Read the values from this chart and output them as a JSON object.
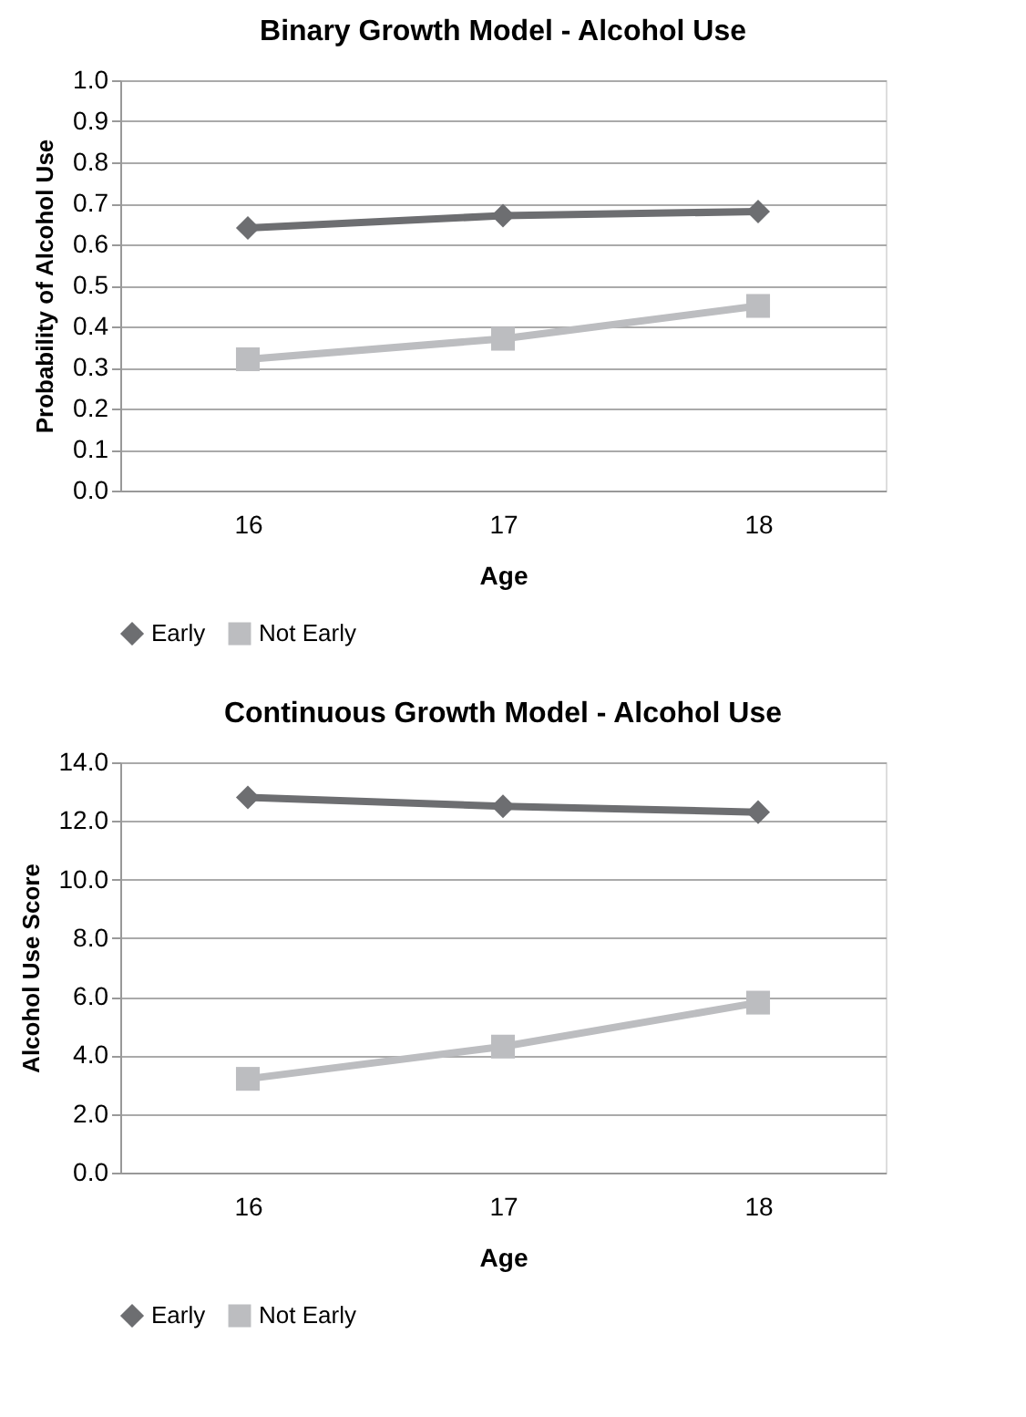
{
  "chart_data": [
    {
      "type": "line",
      "title": "Binary Growth Model - Alcohol Use",
      "xlabel": "Age",
      "ylabel": "Probability of Alcohol Use",
      "categories": [
        "16",
        "17",
        "18"
      ],
      "series": [
        {
          "name": "Early",
          "color": "#6d6e71",
          "marker": "diamond",
          "values": [
            0.64,
            0.67,
            0.68
          ]
        },
        {
          "name": "Not Early",
          "color": "#bcbdc0",
          "marker": "square",
          "values": [
            0.32,
            0.37,
            0.45
          ]
        }
      ],
      "ylim": [
        0,
        1
      ],
      "yticks": [
        {
          "value": 0,
          "label": "0.0"
        },
        0.1,
        0.2,
        0.3,
        0.4,
        0.5,
        0.6,
        0.7,
        0.8,
        0.9,
        {
          "value": 1,
          "label": "1.0"
        }
      ],
      "grid": "y",
      "legend": "bottom",
      "line_style": "solid"
    },
    {
      "type": "line",
      "title": "Continuous Growth Model - Alcohol Use",
      "xlabel": "Age",
      "ylabel": "Alcohol  Use Score",
      "categories": [
        "16",
        "17",
        "18"
      ],
      "series": [
        {
          "name": "Early",
          "color": "#6d6e71",
          "marker": "diamond",
          "values": [
            12.8,
            12.5,
            12.3
          ]
        },
        {
          "name": "Not Early",
          "color": "#bcbdc0",
          "marker": "square",
          "values": [
            3.2,
            4.3,
            5.8
          ]
        }
      ],
      "ylim": [
        0,
        14
      ],
      "yticks": [
        {
          "value": 0,
          "label": "0.0"
        },
        {
          "value": 2,
          "label": "2.0"
        },
        {
          "value": 4,
          "label": "4.0"
        },
        {
          "value": 6,
          "label": "6.0"
        },
        {
          "value": 8,
          "label": "8.0"
        },
        {
          "value": 10,
          "label": "10.0"
        },
        {
          "value": 12,
          "label": "12.0"
        },
        {
          "value": 14,
          "label": "14.0"
        }
      ],
      "grid": "y",
      "legend": "bottom",
      "line_style": "solid"
    }
  ]
}
